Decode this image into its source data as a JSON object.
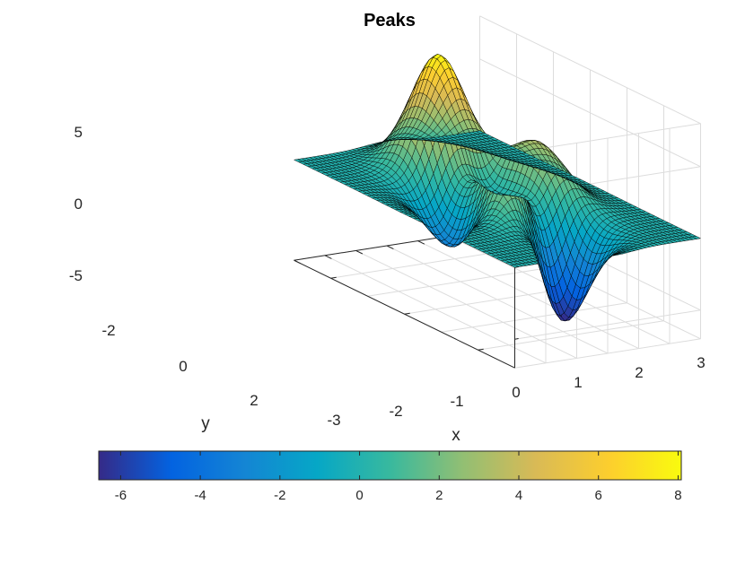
{
  "chart_data": {
    "type": "surface",
    "function": "peaks",
    "title": "Peaks",
    "xlabel": "x",
    "ylabel": "y",
    "zlabel": "",
    "xlim": [
      -3,
      3
    ],
    "ylim": [
      -3,
      3
    ],
    "zlim": [
      -7,
      8
    ],
    "grid_size": 49,
    "x_ticks": [
      "-3",
      "-2",
      "-1",
      "0",
      "1",
      "2",
      "3"
    ],
    "y_ticks": [
      "-2",
      "0",
      "2"
    ],
    "z_ticks": [
      "5",
      "0",
      "-5"
    ],
    "colormap": "parula",
    "colorbar": {
      "location": "bottom",
      "range": [
        -6.55,
        8.08
      ],
      "ticks": [
        "-6",
        "-4",
        "-2",
        "0",
        "2",
        "4",
        "6",
        "8"
      ]
    },
    "grid": true,
    "colors": {
      "mesh_edge": "#000000",
      "grid_line": "#dcdcdc",
      "axis_line": "#262626"
    }
  }
}
